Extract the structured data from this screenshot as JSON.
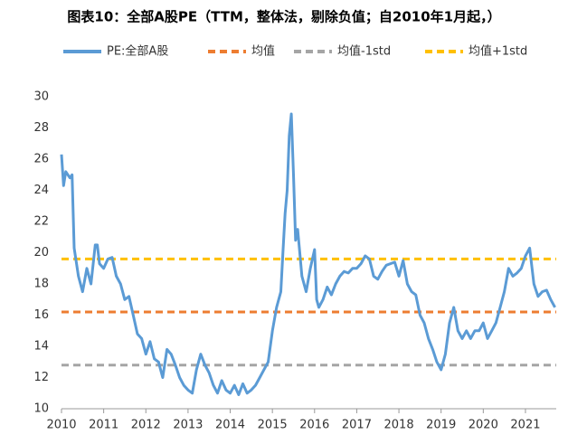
{
  "chart_data": {
    "type": "line",
    "title": "图表10：全部A股PE（TTM，整体法，剔除负值；自2010年1月起，）",
    "x": [
      2010.0,
      2010.05,
      2010.1,
      2010.2,
      2010.25,
      2010.3,
      2010.4,
      2010.5,
      2010.6,
      2010.7,
      2010.8,
      2010.85,
      2010.9,
      2011.0,
      2011.1,
      2011.2,
      2011.3,
      2011.4,
      2011.5,
      2011.6,
      2011.7,
      2011.8,
      2011.9,
      2012.0,
      2012.1,
      2012.2,
      2012.3,
      2012.4,
      2012.5,
      2012.6,
      2012.7,
      2012.8,
      2012.9,
      2013.0,
      2013.1,
      2013.2,
      2013.3,
      2013.4,
      2013.5,
      2013.6,
      2013.7,
      2013.8,
      2013.9,
      2014.0,
      2014.1,
      2014.2,
      2014.3,
      2014.4,
      2014.5,
      2014.6,
      2014.7,
      2014.8,
      2014.9,
      2015.0,
      2015.1,
      2015.2,
      2015.25,
      2015.3,
      2015.35,
      2015.4,
      2015.45,
      2015.5,
      2015.55,
      2015.6,
      2015.7,
      2015.8,
      2015.9,
      2016.0,
      2016.05,
      2016.1,
      2016.2,
      2016.3,
      2016.4,
      2016.5,
      2016.6,
      2016.7,
      2016.8,
      2016.9,
      2017.0,
      2017.1,
      2017.2,
      2017.3,
      2017.4,
      2017.5,
      2017.6,
      2017.7,
      2017.8,
      2017.9,
      2018.0,
      2018.1,
      2018.2,
      2018.3,
      2018.4,
      2018.5,
      2018.6,
      2018.7,
      2018.8,
      2018.9,
      2019.0,
      2019.1,
      2019.2,
      2019.3,
      2019.4,
      2019.5,
      2019.6,
      2019.7,
      2019.8,
      2019.9,
      2020.0,
      2020.1,
      2020.2,
      2020.3,
      2020.4,
      2020.5,
      2020.6,
      2020.7,
      2020.8,
      2020.9,
      2021.0,
      2021.1,
      2021.2,
      2021.3,
      2021.4,
      2021.5,
      2021.6,
      2021.7
    ],
    "series": [
      {
        "name": "PE:全部A股",
        "color": "#5b9bd5",
        "values": [
          26.3,
          24.3,
          25.2,
          24.8,
          25.0,
          20.3,
          18.5,
          17.5,
          19.0,
          18.0,
          20.5,
          20.5,
          19.3,
          19.0,
          19.6,
          19.7,
          18.5,
          18.0,
          17.0,
          17.2,
          16.0,
          14.8,
          14.5,
          13.5,
          14.3,
          13.2,
          13.0,
          12.0,
          13.8,
          13.5,
          12.8,
          12.0,
          11.5,
          11.2,
          11.0,
          12.5,
          13.5,
          12.8,
          12.3,
          11.5,
          11.0,
          11.8,
          11.2,
          11.0,
          11.5,
          10.9,
          11.6,
          11.0,
          11.2,
          11.5,
          12.0,
          12.5,
          13.0,
          15.0,
          16.5,
          17.5,
          20.0,
          22.5,
          24.0,
          27.5,
          28.9,
          25.0,
          20.8,
          21.5,
          18.5,
          17.5,
          19.0,
          20.2,
          17.0,
          16.5,
          17.0,
          17.8,
          17.3,
          18.0,
          18.5,
          18.8,
          18.7,
          19.0,
          19.0,
          19.3,
          19.8,
          19.6,
          18.5,
          18.3,
          18.8,
          19.2,
          19.3,
          19.4,
          18.5,
          19.5,
          18.0,
          17.5,
          17.3,
          16.0,
          15.5,
          14.5,
          13.8,
          13.0,
          12.5,
          13.5,
          15.5,
          16.5,
          15.0,
          14.5,
          15.0,
          14.5,
          15.0,
          15.0,
          15.5,
          14.5,
          15.0,
          15.5,
          16.5,
          17.5,
          19.0,
          18.5,
          18.7,
          19.0,
          19.8,
          20.3,
          18.0,
          17.2,
          17.5,
          17.6,
          17.0,
          16.5
        ]
      }
    ],
    "reference_lines": [
      {
        "name": "均值",
        "color": "#ed7d31",
        "value": 16.2
      },
      {
        "name": "均值-1std",
        "color": "#a5a5a5",
        "value": 12.8
      },
      {
        "name": "均值+1std",
        "color": "#ffc000",
        "value": 19.6
      }
    ],
    "xlim": [
      2010,
      2021.73
    ],
    "xticks": [
      2010,
      2011,
      2012,
      2013,
      2014,
      2015,
      2016,
      2017,
      2018,
      2019,
      2020,
      2021
    ],
    "ylim": [
      10,
      30
    ],
    "yticks": [
      10,
      12,
      14,
      16,
      18,
      20,
      22,
      24,
      26,
      28,
      30
    ]
  }
}
